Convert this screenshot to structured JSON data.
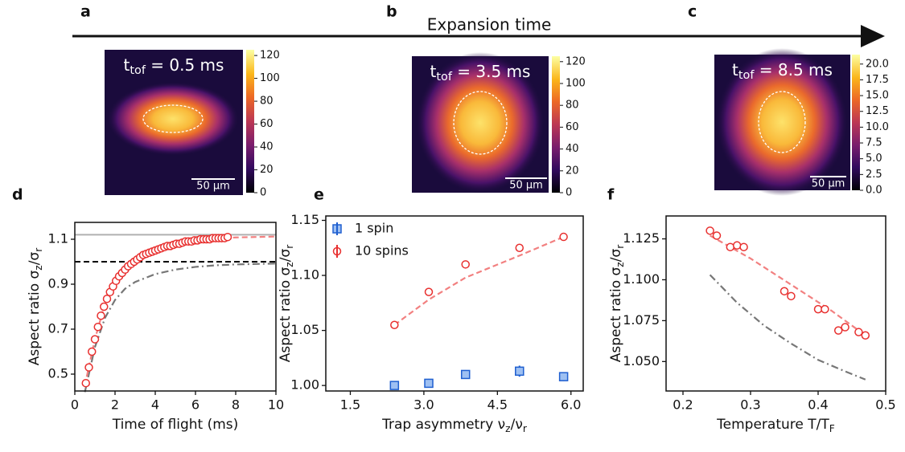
{
  "arrow_label": "Expansion time",
  "chart_data": [
    {
      "type": "image",
      "panel": "a",
      "title": [
        "t",
        "tof",
        " = 0.5 ms"
      ],
      "scale_bar": "50 μm",
      "clim": [
        0,
        125
      ],
      "cticks": [
        0,
        20,
        40,
        60,
        80,
        100,
        120
      ]
    },
    {
      "type": "image",
      "panel": "b",
      "title": [
        "t",
        "tof",
        " = 3.5 ms"
      ],
      "scale_bar": "50 μm",
      "clim": [
        0,
        125
      ],
      "cticks": [
        0,
        20,
        40,
        60,
        80,
        100,
        120
      ]
    },
    {
      "type": "image",
      "panel": "c",
      "title": [
        "t",
        "tof",
        " = 8.5 ms"
      ],
      "scale_bar": "50 μm",
      "clim": [
        0,
        21.5
      ],
      "cticks": [
        {
          "value": 0,
          "label": "0.0"
        },
        {
          "value": 2.5,
          "label": "2.5"
        },
        {
          "value": 5,
          "label": "5.0"
        },
        {
          "value": 7.5,
          "label": "7.5"
        },
        {
          "value": 10,
          "label": "10.0"
        },
        {
          "value": 12.5,
          "label": "12.5"
        },
        {
          "value": 15,
          "label": "15.0"
        },
        {
          "value": 17.5,
          "label": "17.5"
        },
        {
          "value": 20,
          "label": "20.0"
        }
      ]
    },
    {
      "type": "scatter",
      "panel": "d",
      "xlabel": [
        "Time of flight (ms)"
      ],
      "ylabel": [
        "Aspect ratio σ",
        "z",
        "/σ",
        "r"
      ],
      "xlim": [
        0,
        10
      ],
      "ylim": [
        0.425,
        1.175
      ],
      "xticks": [
        0,
        2,
        4,
        6,
        8,
        10
      ],
      "yticks": [
        0.5,
        0.7,
        0.9,
        1.1
      ],
      "hlines": [
        {
          "value": 1.12,
          "color": "#b0b0b0",
          "style": "solid"
        },
        {
          "value": 1.0,
          "color": "#000000",
          "style": "dashed"
        }
      ],
      "series": [
        {
          "style": "dashdot",
          "color": "#777777",
          "x": [
            0.5,
            1,
            1.5,
            2,
            2.5,
            3,
            4,
            5,
            6,
            7,
            8,
            9,
            10
          ],
          "values": [
            0.42,
            0.62,
            0.75,
            0.83,
            0.88,
            0.91,
            0.945,
            0.965,
            0.977,
            0.984,
            0.988,
            0.99,
            0.992
          ]
        },
        {
          "style": "dashed",
          "color": "#f28080",
          "x": [
            0.5,
            1,
            1.5,
            2,
            3,
            4,
            5,
            6,
            7,
            8,
            9,
            10
          ],
          "values": [
            0.45,
            0.655,
            0.815,
            0.905,
            1.0,
            1.05,
            1.077,
            1.094,
            1.103,
            1.108,
            1.11,
            1.112
          ]
        },
        {
          "style": "markers",
          "marker": "circle",
          "color": "#e8302f",
          "x": [
            0.55,
            0.7,
            0.85,
            1.0,
            1.15,
            1.3,
            1.45,
            1.6,
            1.75,
            1.9,
            2.05,
            2.2,
            2.35,
            2.5,
            2.65,
            2.8,
            2.95,
            3.1,
            3.25,
            3.4,
            3.55,
            3.7,
            3.85,
            4.0,
            4.15,
            4.3,
            4.45,
            4.6,
            4.75,
            4.9,
            5.05,
            5.2,
            5.35,
            5.5,
            5.65,
            5.8,
            5.95,
            6.1,
            6.25,
            6.4,
            6.55,
            6.7,
            6.85,
            7.0,
            7.15,
            7.3,
            7.45,
            7.6
          ],
          "values": [
            0.46,
            0.53,
            0.6,
            0.655,
            0.71,
            0.76,
            0.8,
            0.835,
            0.865,
            0.89,
            0.915,
            0.935,
            0.95,
            0.965,
            0.98,
            0.99,
            1.0,
            1.01,
            1.02,
            1.03,
            1.035,
            1.04,
            1.045,
            1.05,
            1.055,
            1.06,
            1.065,
            1.07,
            1.07,
            1.075,
            1.08,
            1.08,
            1.085,
            1.09,
            1.09,
            1.09,
            1.095,
            1.095,
            1.1,
            1.1,
            1.1,
            1.1,
            1.105,
            1.105,
            1.105,
            1.105,
            1.105,
            1.11
          ]
        }
      ]
    },
    {
      "type": "scatter",
      "panel": "e",
      "xlabel": [
        "Trap asymmetry ν",
        "z",
        "/ν",
        "r"
      ],
      "ylabel": [
        "Aspect ratio σ",
        "z",
        "/σ",
        "r"
      ],
      "xlim": [
        1.0,
        6.25
      ],
      "ylim": [
        0.995,
        1.154
      ],
      "xticks": [
        1.5,
        {
          "value": 3,
          "label": "3.0"
        },
        4.5,
        {
          "value": 6,
          "label": "6.0"
        }
      ],
      "yticks": [
        {
          "value": 1,
          "label": "1.00"
        },
        1.05,
        {
          "value": 1.1,
          "label": "1.10"
        },
        1.15
      ],
      "legend": "upper left",
      "series": [
        {
          "style": "dashed",
          "color": "#f28080",
          "x": [
            2.4,
            3.1,
            3.85,
            4.95,
            5.85
          ],
          "values": [
            1.055,
            1.078,
            1.098,
            1.118,
            1.135
          ]
        },
        {
          "name": "1 spin",
          "style": "markers",
          "marker": "square",
          "color": "#1f5fd0",
          "x": [
            2.4,
            3.1,
            3.85,
            4.95,
            5.85
          ],
          "values": [
            1.0,
            1.002,
            1.01,
            1.013,
            1.008
          ],
          "errors": [
            0.003,
            0.004,
            0.004,
            0.005,
            0.004
          ]
        },
        {
          "name": "10 spins",
          "style": "markers",
          "marker": "circle",
          "color": "#e8302f",
          "x": [
            2.4,
            3.1,
            3.85,
            4.95,
            5.85
          ],
          "values": [
            1.055,
            1.085,
            1.11,
            1.125,
            1.135
          ]
        }
      ]
    },
    {
      "type": "scatter",
      "panel": "f",
      "xlabel": [
        "Temperature T/T",
        "F"
      ],
      "ylabel": [
        "Aspect ratio σ",
        "z",
        "/σ",
        "r"
      ],
      "xlim": [
        0.175,
        0.5
      ],
      "ylim": [
        1.032,
        1.139
      ],
      "xticks": [
        0.2,
        0.3,
        0.4,
        0.5
      ],
      "yticks": [
        {
          "value": 1.05,
          "label": "1.050"
        },
        1.075,
        {
          "value": 1.1,
          "label": "1.100"
        },
        1.125
      ],
      "series": [
        {
          "style": "dashdot",
          "color": "#777777",
          "x": [
            0.24,
            0.28,
            0.32,
            0.36,
            0.4,
            0.44,
            0.47
          ],
          "values": [
            1.103,
            1.086,
            1.072,
            1.061,
            1.051,
            1.044,
            1.039
          ]
        },
        {
          "style": "dashed",
          "color": "#f28080",
          "x": [
            0.24,
            0.3,
            0.36,
            0.42,
            0.47
          ],
          "values": [
            1.127,
            1.113,
            1.097,
            1.081,
            1.066
          ]
        },
        {
          "style": "markers",
          "marker": "circle",
          "color": "#e8302f",
          "x": [
            0.24,
            0.25,
            0.27,
            0.28,
            0.29,
            0.35,
            0.36,
            0.4,
            0.41,
            0.43,
            0.44,
            0.46,
            0.47
          ],
          "values": [
            1.13,
            1.127,
            1.12,
            1.121,
            1.12,
            1.093,
            1.09,
            1.082,
            1.082,
            1.069,
            1.071,
            1.068,
            1.066
          ]
        }
      ]
    }
  ]
}
